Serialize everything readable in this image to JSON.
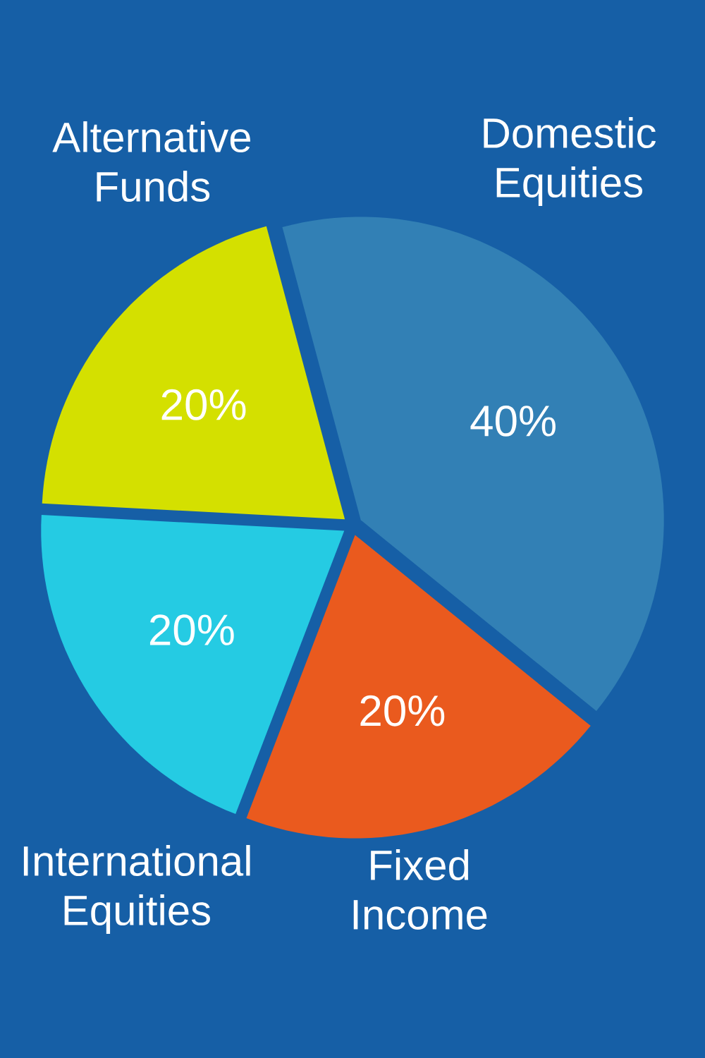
{
  "chart_data": {
    "type": "pie",
    "categories": [
      "Domestic Equities",
      "Fixed Income",
      "International Equities",
      "Alternative Funds"
    ],
    "values": [
      40,
      20,
      20,
      20
    ],
    "value_labels": [
      "40%",
      "20%",
      "20%",
      "20%"
    ],
    "colors": [
      "#3280b5",
      "#ea5a1e",
      "#25cbe3",
      "#d4e000"
    ]
  }
}
